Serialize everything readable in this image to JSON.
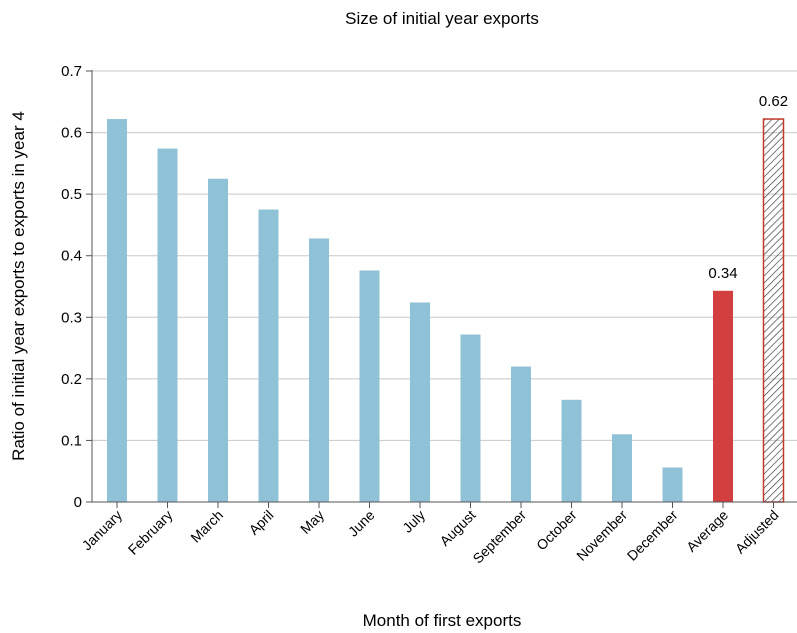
{
  "chart_data": {
    "type": "bar",
    "title": "Size of initial year exports",
    "xlabel": "Month of first exports",
    "ylabel": "Ratio of initial year exports to exports in year 4",
    "ylim": [
      0,
      0.7
    ],
    "yticks": [
      "0",
      "0.1",
      "0.2",
      "0.3",
      "0.4",
      "0.5",
      "0.6",
      "0.7"
    ],
    "grid": true,
    "categories": [
      "January",
      "February",
      "March",
      "April",
      "May",
      "June",
      "July",
      "August",
      "September",
      "October",
      "November",
      "December",
      "Average",
      "Adjusted"
    ],
    "values": [
      0.622,
      0.574,
      0.525,
      0.475,
      0.428,
      0.376,
      0.324,
      0.272,
      0.22,
      0.166,
      0.11,
      0.056,
      0.343,
      0.622
    ],
    "bar_styles": [
      "solid",
      "solid",
      "solid",
      "solid",
      "solid",
      "solid",
      "solid",
      "solid",
      "solid",
      "solid",
      "solid",
      "solid",
      "solid",
      "hatched"
    ],
    "bar_colors": [
      "#8fc2d6",
      "#8fc2d6",
      "#8fc2d6",
      "#8fc2d6",
      "#8fc2d6",
      "#8fc2d6",
      "#8fc2d6",
      "#8fc2d6",
      "#8fc2d6",
      "#8fc2d6",
      "#8fc2d6",
      "#8fc2d6",
      "#d23f3f",
      "#c0392b"
    ],
    "data_labels": [
      "",
      "",
      "",
      "",
      "",
      "",
      "",
      "",
      "",
      "",
      "",
      "",
      "0.34",
      "0.62"
    ]
  }
}
